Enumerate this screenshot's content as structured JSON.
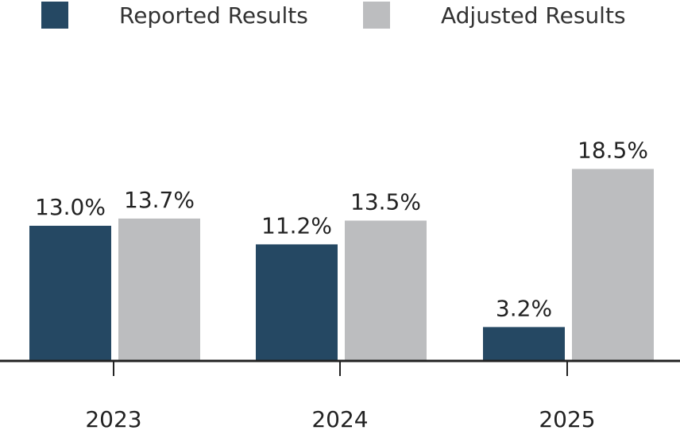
{
  "chart_data": {
    "type": "bar",
    "categories": [
      "2023",
      "2024",
      "2025"
    ],
    "series": [
      {
        "name": "Reported Results",
        "values": [
          13.0,
          11.2,
          3.2
        ],
        "labels": [
          "13.0%",
          "11.2%",
          "3.2%"
        ],
        "color": "#254863"
      },
      {
        "name": "Adjusted Results",
        "values": [
          13.7,
          13.5,
          18.5
        ],
        "labels": [
          "13.7%",
          "13.5%",
          "18.5%"
        ],
        "color": "#BCBDBF"
      }
    ],
    "ylim": [
      0,
      20
    ],
    "grid": false,
    "legend": "top"
  }
}
